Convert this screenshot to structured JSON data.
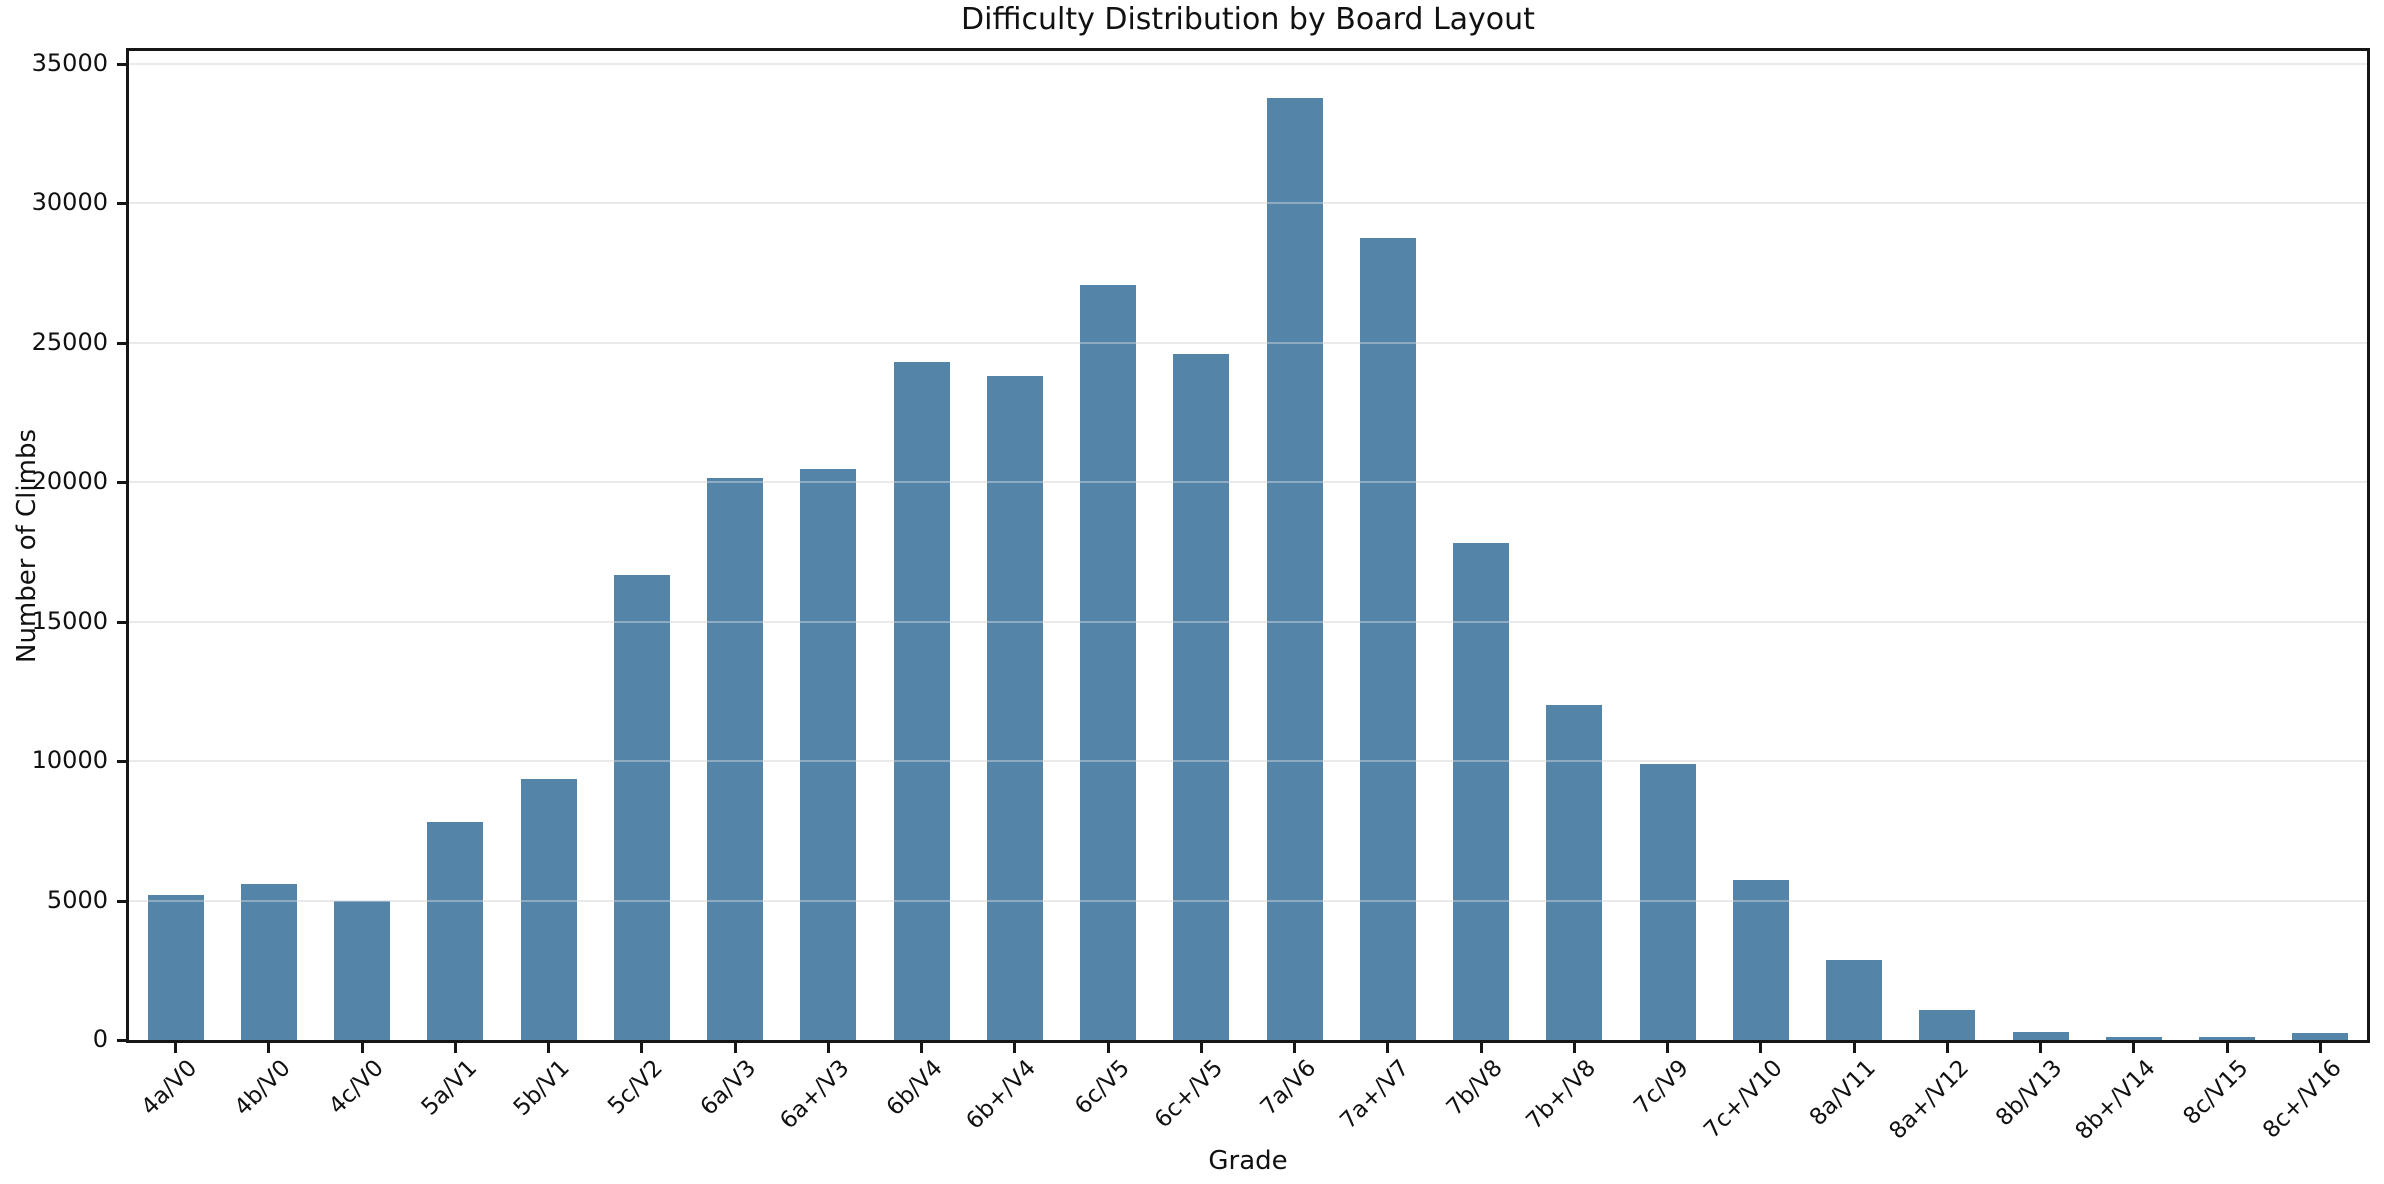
{
  "figure": {
    "background": "#ffffff",
    "text_color": "#111111",
    "spine_color": "#161616",
    "grid_color": "#e8e8e8"
  },
  "chart_data": {
    "type": "bar",
    "title": "Difficulty Distribution by Board Layout",
    "xlabel": "Grade",
    "ylabel": "Number of Climbs",
    "categories": [
      "4a/V0",
      "4b/V0",
      "4c/V0",
      "5a/V1",
      "5b/V1",
      "5c/V2",
      "6a/V3",
      "6a+/V3",
      "6b/V4",
      "6b+/V4",
      "6c/V5",
      "6c+/V5",
      "7a/V6",
      "7a+/V7",
      "7b/V8",
      "7b+/V8",
      "7c/V9",
      "7c+/V10",
      "8a/V11",
      "8a+/V12",
      "8b/V13",
      "8b+/V14",
      "8c/V15",
      "8c+/V16"
    ],
    "values": [
      5200,
      5600,
      5000,
      7800,
      9350,
      16650,
      20150,
      20450,
      24300,
      23800,
      27050,
      24600,
      33770,
      28730,
      17800,
      12000,
      9900,
      5720,
      2870,
      1060,
      300,
      90,
      100,
      250
    ],
    "yticks": [
      0,
      5000,
      10000,
      15000,
      20000,
      25000,
      30000,
      35000
    ],
    "ylim": [
      0,
      35450
    ],
    "grid": "horizontal",
    "legend": "none",
    "bar_color": "#5484a8",
    "bar_width_fraction": 0.6,
    "x_tick_rotation": 45
  }
}
